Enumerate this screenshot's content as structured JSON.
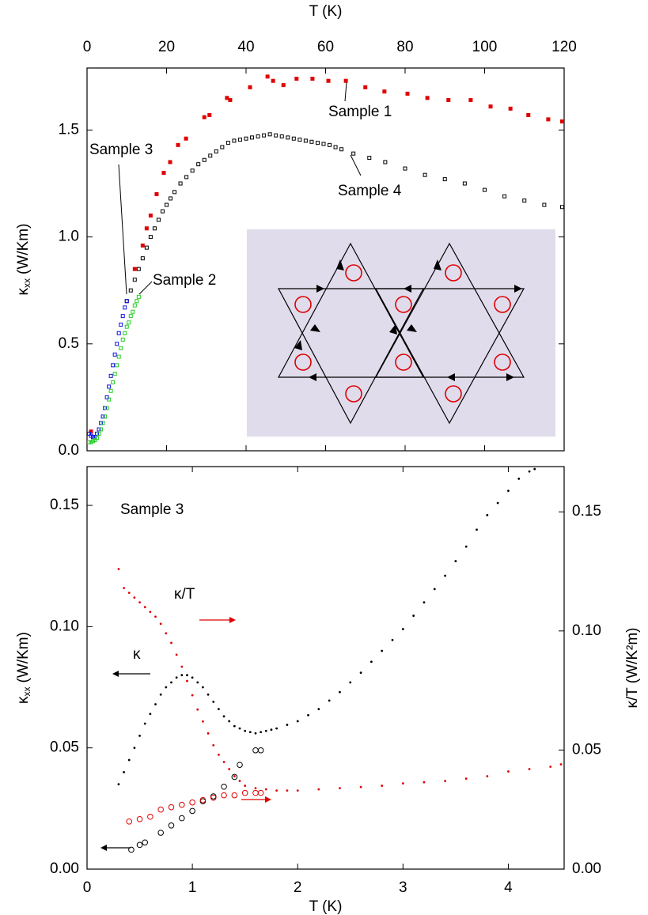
{
  "chart_data": [
    {
      "type": "scatter",
      "xlabel": "T (K)",
      "ylabel": {
        "symbol": "κ",
        "subscript": "xx",
        "unit": "(W/Km)"
      },
      "xlim": [
        0,
        120
      ],
      "xticks": [
        0,
        20,
        40,
        60,
        80,
        100,
        120
      ],
      "ylim": [
        0,
        1.79
      ],
      "yticks": [
        {
          "value": 0,
          "label": "0.0"
        },
        {
          "value": 0.5,
          "label": "0.5"
        },
        {
          "value": 1,
          "label": "1.0"
        },
        {
          "value": 1.5,
          "label": "1.5"
        }
      ],
      "grid": false,
      "series": [
        {
          "name": "Sample 1",
          "color": "#e00000",
          "marker": "square",
          "x": [
            1,
            12,
            14,
            15,
            16,
            17.5,
            19.3,
            20.9,
            22.9,
            24.9,
            29.5,
            30.8,
            35.2,
            36,
            41,
            45.4,
            46.8,
            49.4,
            52.7,
            56.7,
            60.7,
            65.1,
            70,
            74.8,
            80.6,
            85.6,
            90.9,
            96.5,
            101.5,
            106.5,
            111,
            116,
            119.5
          ],
          "values": [
            0.09,
            0.85,
            0.96,
            1.04,
            1.1,
            1.2,
            1.3,
            1.35,
            1.43,
            1.46,
            1.56,
            1.57,
            1.65,
            1.64,
            1.7,
            1.75,
            1.73,
            1.71,
            1.74,
            1.74,
            1.73,
            1.73,
            1.7,
            1.68,
            1.67,
            1.65,
            1.64,
            1.64,
            1.61,
            1.6,
            1.57,
            1.55,
            1.54
          ]
        },
        {
          "name": "Sample 4",
          "color": "#000000",
          "marker": "open-square",
          "x": [
            10,
            11,
            12,
            13,
            14,
            15,
            16,
            17,
            18,
            19,
            20,
            21,
            22,
            23.5,
            25,
            26.5,
            28,
            29.5,
            31,
            32.5,
            34,
            35.5,
            37,
            38.5,
            40,
            41.5,
            43,
            44.5,
            46,
            47.5,
            49,
            50.5,
            52,
            53.5,
            55,
            56.5,
            58,
            59.5,
            61,
            62.5,
            64,
            67,
            71,
            75,
            80,
            85,
            90,
            95,
            100,
            105,
            110,
            115,
            119.5
          ],
          "values": [
            0.7,
            0.75,
            0.8,
            0.85,
            0.9,
            0.95,
            1.0,
            1.04,
            1.08,
            1.12,
            1.15,
            1.18,
            1.21,
            1.25,
            1.28,
            1.31,
            1.34,
            1.36,
            1.38,
            1.4,
            1.42,
            1.44,
            1.45,
            1.455,
            1.46,
            1.465,
            1.47,
            1.475,
            1.48,
            1.475,
            1.47,
            1.465,
            1.46,
            1.455,
            1.45,
            1.445,
            1.44,
            1.435,
            1.43,
            1.42,
            1.41,
            1.39,
            1.37,
            1.35,
            1.32,
            1.29,
            1.27,
            1.25,
            1.22,
            1.19,
            1.17,
            1.15,
            1.14
          ]
        },
        {
          "name": "Sample 3",
          "color": "#1010e0",
          "marker": "open-square",
          "x": [
            0.5,
            1,
            1.5,
            2,
            2.5,
            3,
            3.5,
            4,
            4.5,
            5,
            5.5,
            6,
            6.5,
            7,
            7.5,
            8,
            8.5,
            9,
            9.5,
            10
          ],
          "values": [
            0.08,
            0.07,
            0.065,
            0.06,
            0.08,
            0.1,
            0.13,
            0.16,
            0.2,
            0.25,
            0.3,
            0.35,
            0.4,
            0.45,
            0.5,
            0.55,
            0.59,
            0.63,
            0.67,
            0.7
          ]
        },
        {
          "name": "Sample 2",
          "color": "#22cc22",
          "marker": "open-square",
          "x": [
            0.5,
            1,
            1.5,
            2,
            2.5,
            3,
            3.5,
            4,
            4.5,
            5,
            5.5,
            6,
            6.5,
            7,
            7.5,
            8,
            8.5,
            9,
            9.5,
            10,
            10.5,
            11,
            11.5,
            12,
            12.5,
            13
          ],
          "values": [
            0.04,
            0.04,
            0.045,
            0.05,
            0.06,
            0.08,
            0.1,
            0.13,
            0.16,
            0.2,
            0.24,
            0.28,
            0.32,
            0.36,
            0.4,
            0.44,
            0.48,
            0.52,
            0.55,
            0.58,
            0.6,
            0.63,
            0.65,
            0.68,
            0.7,
            0.72
          ]
        }
      ]
    },
    {
      "type": "scatter",
      "xlabel": "T (K)",
      "ylabel": {
        "symbol": "κ",
        "subscript": "xx",
        "unit": "(W/Km)"
      },
      "y2label": "κ/T (W/K²m)",
      "annotations": [
        "Sample 3"
      ],
      "xlim": [
        0,
        4.53
      ],
      "xticks": [
        0,
        1,
        2,
        3,
        4
      ],
      "ylim": [
        0,
        0.166
      ],
      "yticks": [
        {
          "value": 0,
          "label": "0.00"
        },
        {
          "value": 0.05,
          "label": "0.05"
        },
        {
          "value": 0.1,
          "label": "0.10"
        },
        {
          "value": 0.15,
          "label": "0.15"
        }
      ],
      "y2lim": [
        0,
        0.169
      ],
      "y2ticks": [
        {
          "value": 0,
          "label": "0.00"
        },
        {
          "value": 0.05,
          "label": "0.05"
        },
        {
          "value": 0.1,
          "label": "0.10"
        },
        {
          "value": 0.15,
          "label": "0.15"
        }
      ],
      "grid": false,
      "series": [
        {
          "name": "κ",
          "color": "#000000",
          "marker": "dot",
          "x": [
            0.3,
            0.35,
            0.4,
            0.45,
            0.5,
            0.55,
            0.6,
            0.65,
            0.7,
            0.75,
            0.8,
            0.85,
            0.9,
            0.95,
            1.0,
            1.05,
            1.1,
            1.15,
            1.2,
            1.25,
            1.3,
            1.35,
            1.4,
            1.45,
            1.5,
            1.55,
            1.6,
            1.65,
            1.7,
            1.75,
            1.8,
            1.9,
            2.0,
            2.1,
            2.2,
            2.3,
            2.4,
            2.5,
            2.6,
            2.7,
            2.8,
            2.9,
            3.0,
            3.1,
            3.2,
            3.3,
            3.4,
            3.5,
            3.6,
            3.7,
            3.8,
            3.9,
            4.0,
            4.1,
            4.2,
            4.25
          ],
          "values": [
            0.035,
            0.04,
            0.045,
            0.05,
            0.055,
            0.06,
            0.064,
            0.068,
            0.072,
            0.075,
            0.077,
            0.079,
            0.08,
            0.08,
            0.079,
            0.077,
            0.075,
            0.072,
            0.069,
            0.066,
            0.063,
            0.061,
            0.059,
            0.058,
            0.057,
            0.0565,
            0.056,
            0.0565,
            0.057,
            0.0575,
            0.058,
            0.0595,
            0.061,
            0.0635,
            0.066,
            0.0695,
            0.073,
            0.077,
            0.081,
            0.0855,
            0.09,
            0.0945,
            0.099,
            0.1045,
            0.11,
            0.1155,
            0.121,
            0.127,
            0.133,
            0.14,
            0.146,
            0.151,
            0.156,
            0.161,
            0.164,
            0.165
          ]
        },
        {
          "name": "κ/T",
          "color": "#e00000",
          "marker": "dot",
          "axis": "y2",
          "x": [
            0.3,
            0.35,
            0.4,
            0.45,
            0.5,
            0.55,
            0.6,
            0.65,
            0.7,
            0.75,
            0.8,
            0.85,
            0.9,
            0.95,
            1.0,
            1.05,
            1.1,
            1.15,
            1.2,
            1.25,
            1.3,
            1.35,
            1.4,
            1.45,
            1.5,
            1.6,
            1.7,
            1.8,
            1.9,
            2.0,
            2.2,
            2.4,
            2.6,
            2.8,
            3.0,
            3.2,
            3.4,
            3.6,
            3.8,
            4.0,
            4.2,
            4.4,
            4.5
          ],
          "values": [
            0.126,
            0.118,
            0.116,
            0.114,
            0.112,
            0.11,
            0.108,
            0.106,
            0.103,
            0.099,
            0.095,
            0.09,
            0.085,
            0.079,
            0.073,
            0.067,
            0.062,
            0.057,
            0.052,
            0.048,
            0.045,
            0.042,
            0.039,
            0.037,
            0.035,
            0.034,
            0.0335,
            0.033,
            0.033,
            0.033,
            0.0335,
            0.034,
            0.0345,
            0.035,
            0.036,
            0.0365,
            0.037,
            0.038,
            0.039,
            0.041,
            0.042,
            0.043,
            0.044
          ]
        },
        {
          "color": "#000000",
          "marker": "open-circle",
          "x": [
            0.42,
            0.5,
            0.55,
            0.7,
            0.8,
            0.9,
            1.0,
            1.1,
            1.2,
            1.3,
            1.4,
            1.45,
            1.6,
            1.65
          ],
          "values": [
            0.008,
            0.01,
            0.011,
            0.015,
            0.018,
            0.021,
            0.024,
            0.028,
            0.03,
            0.034,
            0.038,
            0.043,
            0.049,
            0.049
          ]
        },
        {
          "color": "#e00000",
          "marker": "open-circle",
          "axis": "y2",
          "x": [
            0.4,
            0.5,
            0.6,
            0.7,
            0.8,
            0.9,
            1.0,
            1.1,
            1.2,
            1.3,
            1.4,
            1.5,
            1.6,
            1.65
          ],
          "values": [
            0.02,
            0.021,
            0.022,
            0.025,
            0.026,
            0.027,
            0.028,
            0.029,
            0.03,
            0.031,
            0.031,
            0.032,
            0.032,
            0.032
          ]
        }
      ]
    }
  ]
}
